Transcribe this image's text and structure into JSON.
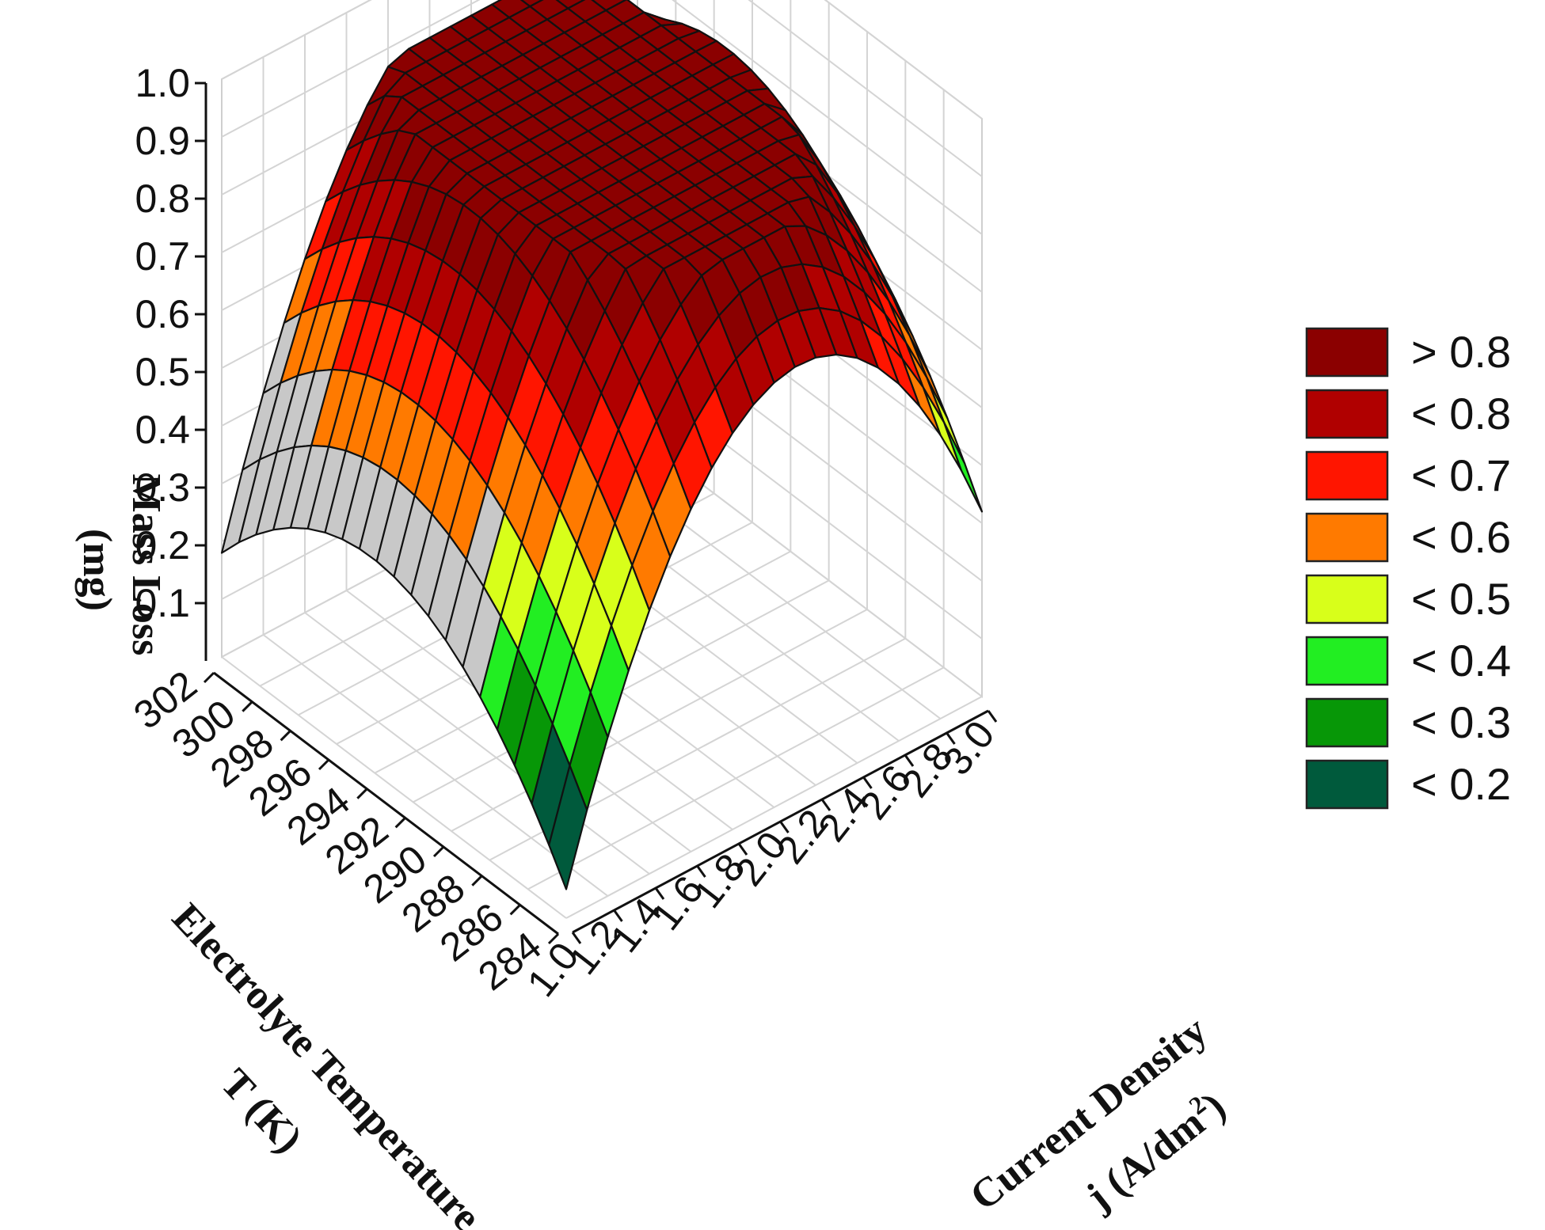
{
  "chart_data": {
    "type": "surface3d",
    "x": {
      "label": [
        "Current Density",
        "j (A/dm",
        "2",
        ")"
      ],
      "ticks": [
        "1.0",
        "1.2",
        "1.4",
        "1.6",
        "1.8",
        "2.0",
        "2.2",
        "2.4",
        "2.6",
        "2.8",
        "3.0"
      ],
      "range": [
        1.0,
        3.0
      ]
    },
    "y": {
      "label": [
        "Electrolyte Temperature",
        "T (K)"
      ],
      "ticks": [
        "284",
        "286",
        "288",
        "290",
        "292",
        "294",
        "296",
        "298",
        "300",
        "302"
      ],
      "range": [
        284,
        302
      ]
    },
    "z": {
      "label": [
        "Mass Loss",
        "(mg)"
      ],
      "ticks": [
        "0.1",
        "0.2",
        "0.3",
        "0.4",
        "0.5",
        "0.6",
        "0.7",
        "0.8",
        "0.9",
        "1.0"
      ],
      "range": [
        0,
        1.0
      ]
    },
    "surface_corners": {
      "j_1.0_T_302": 0.23,
      "j_1.0_T_284": 0.05,
      "j_3.0_T_284": 0.32,
      "j_3.0_T_302": 0.63,
      "peak": 0.86
    },
    "legend": {
      "placement": "right",
      "entries": [
        {
          "label": "> 0.8",
          "color": "#8b0000"
        },
        {
          "label": "< 0.8",
          "color": "#b00000"
        },
        {
          "label": "< 0.7",
          "color": "#ff1500"
        },
        {
          "label": "< 0.6",
          "color": "#ff7a00"
        },
        {
          "label": "< 0.5",
          "color": "#d8ff1a"
        },
        {
          "label": "< 0.4",
          "color": "#22ee22"
        },
        {
          "label": "< 0.3",
          "color": "#079707"
        },
        {
          "label": "< 0.2",
          "color": "#005a3c"
        }
      ]
    },
    "out_of_range_color": "#c8c8c8",
    "grid": true
  }
}
